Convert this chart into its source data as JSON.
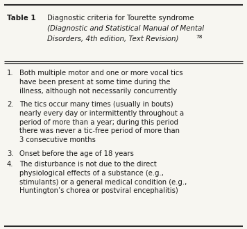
{
  "title_bold": "Table 1",
  "title_rest": "Diagnostic criteria for Tourette syndrome",
  "title_italic_line1": "(Diagnostic and Statistical Manual of Mental",
  "title_italic_line2": "Disorders, 4th edition, Text Revision)",
  "title_superscript": "78",
  "items": [
    {
      "number": "1.",
      "text": "Both multiple motor and one or more vocal tics\nhave been present at some time during the\nillness, although not necessarily concurrently"
    },
    {
      "number": "2.",
      "text": "The tics occur many times (usually in bouts)\nnearly every day or intermittently throughout a\nperiod of more than a year; during this period\nthere was never a tic-free period of more than\n3 consecutive months"
    },
    {
      "number": "3.",
      "text": "Onset before the age of 18 years"
    },
    {
      "number": "4.",
      "text": "The disturbance is not due to the direct\nphysiological effects of a substance (e.g.,\nstimulants) or a general medical condition (e.g.,\nHuntington’s chorea or postviral encephalitis)"
    }
  ],
  "background_color": "#f7f6f1",
  "border_color": "#2a2a2a",
  "text_color": "#1a1a1a",
  "fig_width": 3.56,
  "fig_height": 3.29,
  "font_size": 7.2,
  "title_font_size": 7.4
}
